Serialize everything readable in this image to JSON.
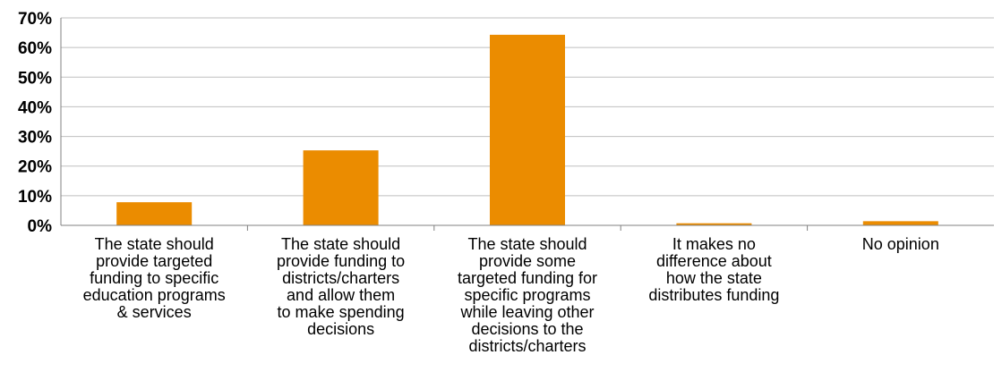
{
  "chart_data": {
    "type": "bar",
    "title": "",
    "xlabel": "",
    "ylabel": "",
    "ylim": [
      0,
      70
    ],
    "yticks": [
      "0%",
      "10%",
      "20%",
      "30%",
      "40%",
      "50%",
      "60%",
      "70%"
    ],
    "ytick_values": [
      0,
      10,
      20,
      30,
      40,
      50,
      60,
      70
    ],
    "grid": true,
    "legend": "none",
    "categories": [
      [
        "The state should",
        "provide targeted",
        "funding to specific",
        "education programs",
        "& services"
      ],
      [
        "The state should",
        "provide funding to",
        "districts/charters",
        "and allow them",
        "to make spending",
        "decisions"
      ],
      [
        "The state should",
        "provide some",
        "targeted funding for",
        "specific programs",
        "while leaving other",
        "decisions to the",
        "districts/charters"
      ],
      [
        "It makes no",
        "difference about",
        "how the state",
        "distributes funding"
      ],
      [
        "No opinion"
      ]
    ],
    "values": [
      7.8,
      25.3,
      64.3,
      0.7,
      1.4
    ],
    "colors": {
      "bar": "#EB8C00",
      "grid": "#BFBFBF",
      "axis": "#808080"
    }
  }
}
